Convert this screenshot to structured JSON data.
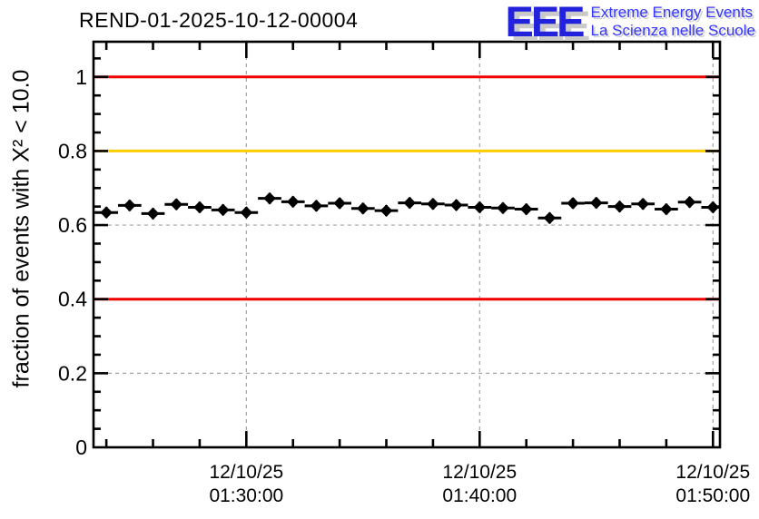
{
  "header": {
    "title": "REND-01-2025-10-12-00004"
  },
  "logo": {
    "acronym": "EEE",
    "line1": "Extreme Energy Events",
    "line2": "La Scienza nelle Scuole",
    "acronym_color": "#2222dd",
    "text_color": "#3333ff",
    "shadow_color": "#c9c9c9"
  },
  "chart_data": {
    "type": "scatter",
    "title": "REND-01-2025-10-12-00004",
    "xlabel": "",
    "ylabel": "fraction of events with X² < 10.0",
    "ylim": [
      0,
      1.095
    ],
    "xlim_minutes": [
      23.45,
      50.3
    ],
    "grid": true,
    "marker": "diamond",
    "marker_color": "#000000",
    "error_bar_halfwidth_minutes": 0.5,
    "x_times": [
      "01:24:00",
      "01:25:00",
      "01:26:00",
      "01:27:00",
      "01:28:00",
      "01:29:00",
      "01:30:00",
      "01:31:00",
      "01:32:00",
      "01:33:00",
      "01:34:00",
      "01:35:00",
      "01:36:00",
      "01:37:00",
      "01:38:00",
      "01:39:00",
      "01:40:00",
      "01:41:00",
      "01:42:00",
      "01:43:00",
      "01:44:00",
      "01:45:00",
      "01:46:00",
      "01:47:00",
      "01:48:00",
      "01:49:00",
      "01:50:00"
    ],
    "x_minutes": [
      24,
      25,
      26,
      27,
      28,
      29,
      30,
      31,
      32,
      33,
      34,
      35,
      36,
      37,
      38,
      39,
      40,
      41,
      42,
      43,
      44,
      45,
      46,
      47,
      48,
      49,
      50
    ],
    "values": [
      0.634,
      0.653,
      0.631,
      0.656,
      0.648,
      0.641,
      0.634,
      0.672,
      0.663,
      0.652,
      0.659,
      0.645,
      0.639,
      0.66,
      0.657,
      0.654,
      0.648,
      0.646,
      0.643,
      0.619,
      0.659,
      0.66,
      0.65,
      0.657,
      0.643,
      0.662,
      0.648
    ],
    "y_major_ticks": [
      {
        "v": 0,
        "label": "0"
      },
      {
        "v": 0.2,
        "label": "0.2"
      },
      {
        "v": 0.4,
        "label": "0.4"
      },
      {
        "v": 0.6,
        "label": "0.6"
      },
      {
        "v": 0.8,
        "label": "0.8"
      },
      {
        "v": 1,
        "label": "1"
      }
    ],
    "y_minor_step": 0.05,
    "x_major_ticks": [
      {
        "minute": 30,
        "date": "12/10/25",
        "time": "01:30:00"
      },
      {
        "minute": 40,
        "date": "12/10/25",
        "time": "01:40:00"
      },
      {
        "minute": 50,
        "date": "12/10/25",
        "time": "01:50:00"
      }
    ],
    "x_minor_step_minutes": 2,
    "reference_lines": [
      {
        "y": 1.0,
        "color": "#ee0000"
      },
      {
        "y": 0.8,
        "color": "#ffcc00"
      },
      {
        "y": 0.4,
        "color": "#ee0000"
      }
    ],
    "grid_color": "#a3a3a3",
    "axis_color": "#000000"
  }
}
